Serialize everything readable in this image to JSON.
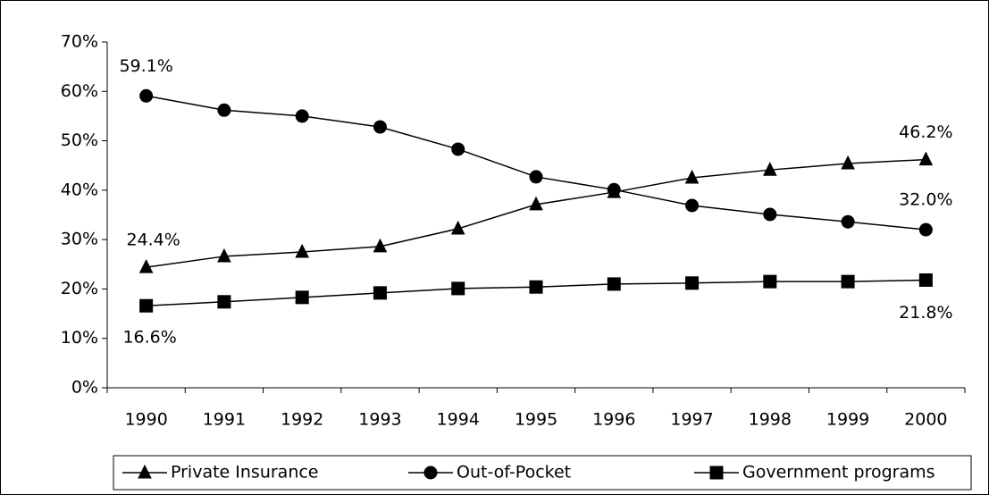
{
  "chart_data": {
    "type": "line",
    "categories": [
      "1990",
      "1991",
      "1992",
      "1993",
      "1994",
      "1995",
      "1996",
      "1997",
      "1998",
      "1999",
      "2000"
    ],
    "series": [
      {
        "name": "Private Insurance",
        "color": "#000000",
        "marker": "triangle",
        "values": [
          24.4,
          26.6,
          27.5,
          28.6,
          32.2,
          37.1,
          39.6,
          42.5,
          44.1,
          45.4,
          46.2
        ],
        "value_labels": [
          "24.4%",
          null,
          null,
          null,
          null,
          null,
          null,
          null,
          null,
          null,
          "46.2%"
        ]
      },
      {
        "name": "Out-of-Pocket",
        "color": "#000000",
        "marker": "circle",
        "values": [
          59.1,
          56.2,
          55.0,
          52.8,
          48.3,
          42.7,
          40.1,
          36.9,
          35.1,
          33.6,
          32.0
        ],
        "value_labels": [
          "59.1%",
          null,
          null,
          null,
          null,
          null,
          null,
          null,
          null,
          null,
          "32.0%"
        ]
      },
      {
        "name": "Government programs",
        "color": "#000000",
        "marker": "square",
        "values": [
          16.6,
          17.4,
          18.3,
          19.2,
          20.1,
          20.4,
          21.0,
          21.2,
          21.5,
          21.5,
          21.8
        ],
        "value_labels": [
          "16.6%",
          null,
          null,
          null,
          null,
          null,
          null,
          null,
          null,
          null,
          "21.8%"
        ]
      }
    ],
    "ylim": [
      0,
      70
    ],
    "yticks": [
      {
        "value": 0,
        "label": "0%"
      },
      {
        "value": 10,
        "label": "10%"
      },
      {
        "value": 20,
        "label": "20%"
      },
      {
        "value": 30,
        "label": "30%"
      },
      {
        "value": 40,
        "label": "40%"
      },
      {
        "value": 50,
        "label": "50%"
      },
      {
        "value": 60,
        "label": "60%"
      },
      {
        "value": 70,
        "label": "70%"
      }
    ],
    "grid": false,
    "legend": "bottom"
  }
}
